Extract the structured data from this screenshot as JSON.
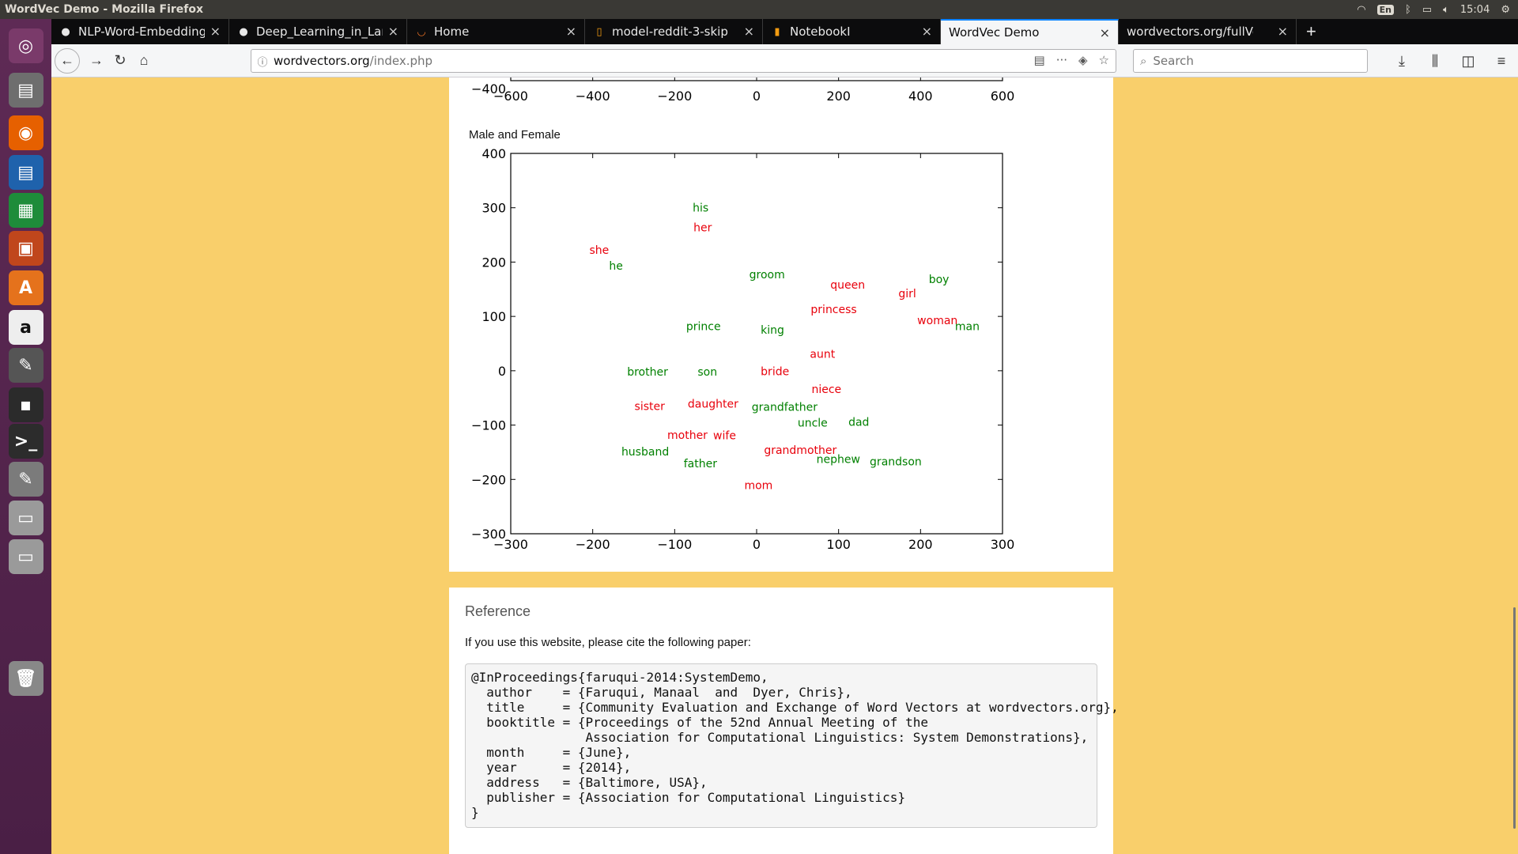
{
  "window": {
    "title": "WordVec Demo - Mozilla Firefox"
  },
  "tray": {
    "keyboard": "En",
    "clock": "15:04"
  },
  "launcher": [
    {
      "name": "ubuntu-dash-icon",
      "color": "#7a3a6a"
    },
    {
      "name": "files-icon",
      "color": "#6e6e6e"
    },
    {
      "name": "firefox-icon",
      "color": "#e66000"
    },
    {
      "name": "writer-icon",
      "color": "#1f62ac"
    },
    {
      "name": "calc-icon",
      "color": "#1e8c3a"
    },
    {
      "name": "impress-icon",
      "color": "#c0461c"
    },
    {
      "name": "software-center-icon",
      "color": "#e5721c"
    },
    {
      "name": "amazon-icon",
      "color": "#eeeeee"
    },
    {
      "name": "settings-icon",
      "color": "#555555"
    },
    {
      "name": "keyring-icon",
      "color": "#2b2b2b"
    },
    {
      "name": "terminal-icon",
      "color": "#2c2c2c"
    },
    {
      "name": "text-editor-icon",
      "color": "#7b7b7b"
    },
    {
      "name": "drive-icon",
      "color": "#9a9a9a"
    },
    {
      "name": "drive2-icon",
      "color": "#9a9a9a"
    },
    {
      "name": "trash-icon",
      "color": "#888888"
    }
  ],
  "tabs": [
    {
      "label": "NLP-Word-Embeddings",
      "icon": "github-icon",
      "active": false
    },
    {
      "label": "Deep_Learning_in_Lang",
      "icon": "github-icon",
      "active": false
    },
    {
      "label": "Home",
      "icon": "jupyter-icon",
      "active": false
    },
    {
      "label": "model-reddit-3-skip",
      "icon": "file-icon",
      "active": false
    },
    {
      "label": "NotebookI",
      "icon": "notebook-icon",
      "active": false
    },
    {
      "label": "WordVec Demo",
      "icon": "",
      "active": true
    },
    {
      "label": "wordvectors.org/fullVocab",
      "icon": "",
      "active": false
    }
  ],
  "navbar": {
    "url_host": "wordvectors.org",
    "url_path": "/index.php",
    "search_placeholder": "Search"
  },
  "top_axis": {
    "y_tick": "−400",
    "x_ticks": [
      "−600",
      "−400",
      "−200",
      "0",
      "200",
      "400",
      "600"
    ]
  },
  "chart_data": {
    "type": "scatter",
    "title": "Male and Female",
    "xlim": [
      -300,
      300
    ],
    "ylim": [
      -300,
      400
    ],
    "x_ticks": [
      -300,
      -200,
      -100,
      0,
      100,
      200,
      300
    ],
    "y_ticks": [
      -300,
      -200,
      -100,
      0,
      100,
      200,
      300,
      400
    ],
    "grid": false,
    "colors": {
      "male": "#008000",
      "female": "#e8000b"
    },
    "points": [
      {
        "label": "his",
        "x": -78,
        "y": 293,
        "group": "male"
      },
      {
        "label": "her",
        "x": -77,
        "y": 257,
        "group": "female"
      },
      {
        "label": "she",
        "x": -204,
        "y": 215,
        "group": "female"
      },
      {
        "label": "he",
        "x": -180,
        "y": 186,
        "group": "male"
      },
      {
        "label": "groom",
        "x": -9,
        "y": 170,
        "group": "male"
      },
      {
        "label": "queen",
        "x": 90,
        "y": 151,
        "group": "female"
      },
      {
        "label": "boy",
        "x": 210,
        "y": 161,
        "group": "male"
      },
      {
        "label": "girl",
        "x": 173,
        "y": 135,
        "group": "female"
      },
      {
        "label": "princess",
        "x": 66,
        "y": 106,
        "group": "female"
      },
      {
        "label": "woman",
        "x": 196,
        "y": 86,
        "group": "female"
      },
      {
        "label": "man",
        "x": 242,
        "y": 75,
        "group": "male"
      },
      {
        "label": "prince",
        "x": -86,
        "y": 75,
        "group": "male"
      },
      {
        "label": "king",
        "x": 5,
        "y": 68,
        "group": "male"
      },
      {
        "label": "aunt",
        "x": 65,
        "y": 24,
        "group": "female"
      },
      {
        "label": "brother",
        "x": -158,
        "y": -9,
        "group": "male"
      },
      {
        "label": "son",
        "x": -72,
        "y": -9,
        "group": "male"
      },
      {
        "label": "bride",
        "x": 5,
        "y": -8,
        "group": "female"
      },
      {
        "label": "niece",
        "x": 67,
        "y": -41,
        "group": "female"
      },
      {
        "label": "sister",
        "x": -149,
        "y": -72,
        "group": "female"
      },
      {
        "label": "daughter",
        "x": -84,
        "y": -68,
        "group": "female"
      },
      {
        "label": "grandfather",
        "x": -6,
        "y": -74,
        "group": "male"
      },
      {
        "label": "uncle",
        "x": 50,
        "y": -103,
        "group": "male"
      },
      {
        "label": "dad",
        "x": 112,
        "y": -101,
        "group": "male"
      },
      {
        "label": "mother",
        "x": -109,
        "y": -125,
        "group": "female"
      },
      {
        "label": "wife",
        "x": -53,
        "y": -126,
        "group": "female"
      },
      {
        "label": "husband",
        "x": -165,
        "y": -156,
        "group": "male"
      },
      {
        "label": "grandmother",
        "x": 9,
        "y": -153,
        "group": "female"
      },
      {
        "label": "nephew",
        "x": 73,
        "y": -170,
        "group": "male"
      },
      {
        "label": "grandson",
        "x": 138,
        "y": -174,
        "group": "male"
      },
      {
        "label": "father",
        "x": -89,
        "y": -178,
        "group": "male"
      },
      {
        "label": "mom",
        "x": -15,
        "y": -218,
        "group": "female"
      }
    ]
  },
  "reference": {
    "heading": "Reference",
    "intro": "If you use this website, please cite the following paper:",
    "bibtex": "@InProceedings{faruqui-2014:SystemDemo,\n  author    = {Faruqui, Manaal  and  Dyer, Chris},\n  title     = {Community Evaluation and Exchange of Word Vectors at wordvectors.org},\n  booktitle = {Proceedings of the 52nd Annual Meeting of the\n               Association for Computational Linguistics: System Demonstrations},\n  month     = {June},\n  year      = {2014},\n  address   = {Baltimore, USA},\n  publisher = {Association for Computational Linguistics}\n}"
  }
}
